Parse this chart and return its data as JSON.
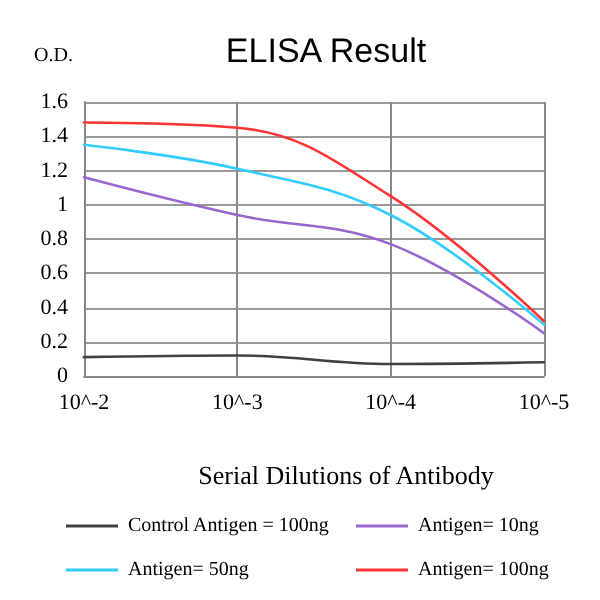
{
  "chart_data": {
    "type": "line",
    "title": "ELISA Result",
    "ylabel": "O.D.",
    "xlabel": "Serial Dilutions of Antibody",
    "categories": [
      "10^-2",
      "10^-3",
      "10^-4",
      "10^-5"
    ],
    "series": [
      {
        "name": "Control Antigen = 100ng",
        "color": "#404040",
        "values": [
          0.11,
          0.12,
          0.07,
          0.08
        ]
      },
      {
        "name": "Antigen= 10ng",
        "color": "#9966cc",
        "values": [
          1.16,
          0.94,
          0.77,
          0.25
        ]
      },
      {
        "name": "Antigen= 50ng",
        "color": "#33ccff",
        "values": [
          1.35,
          1.21,
          0.94,
          0.3
        ]
      },
      {
        "name": "Antigen= 100ng",
        "color": "#ff3333",
        "values": [
          1.48,
          1.45,
          1.05,
          0.32
        ]
      }
    ],
    "ylim": [
      0,
      1.6
    ],
    "yticks": [
      0,
      0.2,
      0.4,
      0.6,
      0.8,
      1,
      1.2,
      1.4,
      1.6
    ],
    "grid": true,
    "legend": "bottom",
    "marker": "none",
    "line_style": "solid"
  }
}
